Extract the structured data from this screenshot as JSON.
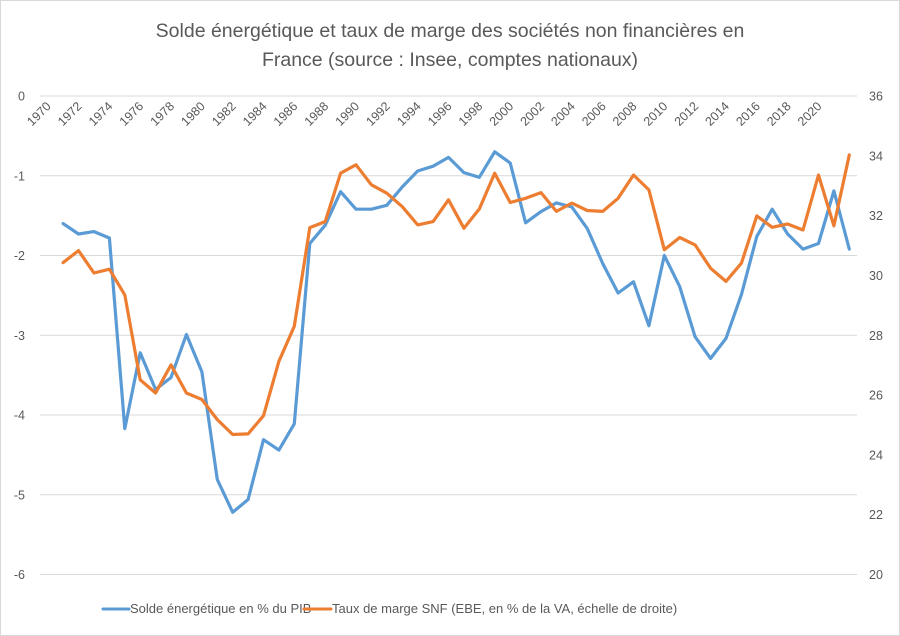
{
  "chart_data": {
    "type": "line",
    "title": [
      "Solde énergétique et taux de marge des sociétés non financières en",
      "France (source : Insee, comptes nationaux)"
    ],
    "xlabel": "",
    "ylabel": "",
    "ylabel_right": "",
    "categories": [
      1970,
      1971,
      1972,
      1973,
      1974,
      1975,
      1976,
      1977,
      1978,
      1979,
      1980,
      1981,
      1982,
      1983,
      1984,
      1985,
      1986,
      1987,
      1988,
      1989,
      1990,
      1991,
      1992,
      1993,
      1994,
      1995,
      1996,
      1997,
      1998,
      1999,
      2000,
      2001,
      2002,
      2003,
      2004,
      2005,
      2006,
      2007,
      2008,
      2009,
      2010,
      2011,
      2012,
      2013,
      2014,
      2015,
      2016,
      2017,
      2018,
      2019,
      2020,
      2021,
      2022
    ],
    "x_tick_labels": [
      "1970",
      "1972",
      "1974",
      "1976",
      "1978",
      "1980",
      "1982",
      "1984",
      "1986",
      "1988",
      "1990",
      "1992",
      "1994",
      "1996",
      "1998",
      "2000",
      "2002",
      "2004",
      "2006",
      "2008",
      "2010",
      "2012",
      "2014",
      "2016",
      "2018",
      "2020"
    ],
    "y_left": {
      "ylim": [
        -6,
        0
      ],
      "ticks": [
        "0",
        "-1",
        "-2",
        "-3",
        "-4",
        "-5",
        "-6"
      ],
      "tick_values": [
        0,
        -1,
        -2,
        -3,
        -4,
        -5,
        -6
      ]
    },
    "y_right": {
      "ylim": [
        20,
        36
      ],
      "ticks": [
        "36",
        "34",
        "32",
        "30",
        "28",
        "26",
        "24",
        "22",
        "20"
      ],
      "tick_values": [
        36,
        34,
        32,
        30,
        28,
        26,
        24,
        22,
        20
      ]
    },
    "grid": true,
    "legend_position": "bottom",
    "series": [
      {
        "name": "Solde énergétique en % du PIB",
        "axis": "left",
        "color": "#5b9bd5",
        "values": [
          null,
          -1.6,
          -1.73,
          -1.7,
          -1.78,
          -4.17,
          -3.22,
          -3.68,
          -3.53,
          -2.99,
          -3.46,
          -4.81,
          -5.22,
          -5.06,
          -4.31,
          -4.44,
          -4.11,
          -1.85,
          -1.62,
          -1.2,
          -1.42,
          -1.42,
          -1.37,
          -1.14,
          -0.94,
          -0.88,
          -0.77,
          -0.96,
          -1.02,
          -0.7,
          -0.84,
          -1.59,
          -1.45,
          -1.34,
          -1.39,
          -1.66,
          -2.1,
          -2.47,
          -2.33,
          -2.88,
          -2.0,
          -2.39,
          -3.02,
          -3.29,
          -3.04,
          -2.49,
          -1.76,
          -1.42,
          -1.73,
          -1.92,
          -1.85,
          -1.19,
          -1.92
        ]
      },
      {
        "name": "Taux de marge SNF (EBE, en % de la VA, échelle de droite)",
        "axis": "right",
        "color": "#ed7d31",
        "values": [
          null,
          30.43,
          30.83,
          30.08,
          30.21,
          29.35,
          26.51,
          26.07,
          27.01,
          26.07,
          25.85,
          25.18,
          24.68,
          24.7,
          25.31,
          27.13,
          28.3,
          31.6,
          31.8,
          33.42,
          33.7,
          33.03,
          32.75,
          32.3,
          31.69,
          31.8,
          32.53,
          31.58,
          32.22,
          33.42,
          32.44,
          32.58,
          32.77,
          32.14,
          32.42,
          32.17,
          32.14,
          32.58,
          33.36,
          32.86,
          30.86,
          31.27,
          31.02,
          30.24,
          29.8,
          30.41,
          31.99,
          31.61,
          31.72,
          31.52,
          33.36,
          31.66,
          34.03
        ]
      }
    ]
  }
}
